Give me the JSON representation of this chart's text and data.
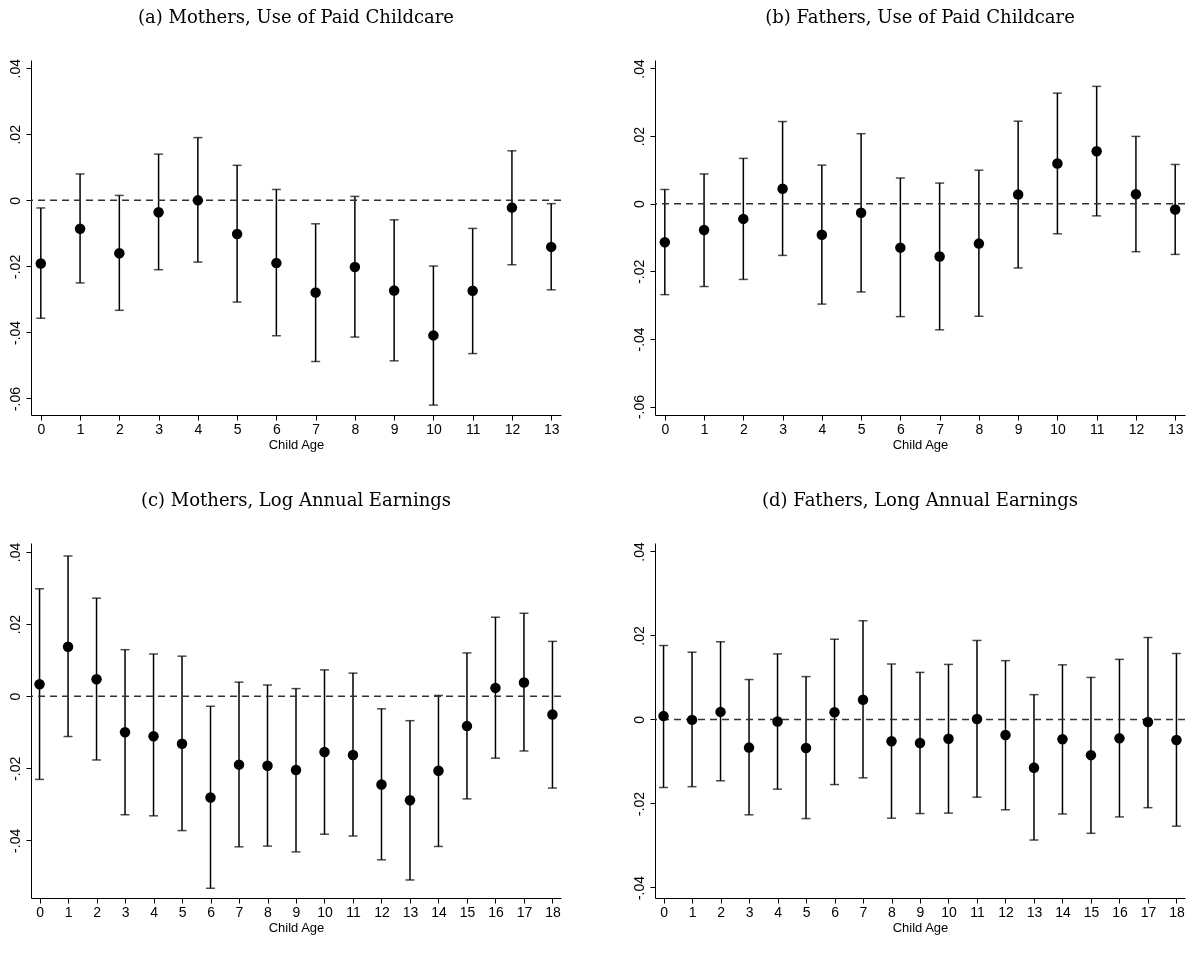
{
  "chart_data": [
    {
      "type": "scatter",
      "title": "(a) Mothers, Use of Paid Childcare",
      "xlabel": "Child Age",
      "marker": "circle",
      "grid": false,
      "color": "#000000",
      "x": [
        0,
        1,
        2,
        3,
        4,
        5,
        6,
        7,
        8,
        9,
        10,
        11,
        12,
        13
      ],
      "values": [
        -0.0191,
        -0.0086,
        -0.016,
        -0.0036,
        0.0,
        -0.0102,
        -0.019,
        -0.0279,
        -0.0202,
        -0.0273,
        -0.0409,
        -0.0274,
        -0.0022,
        -0.0141
      ],
      "errors": [
        [
          -0.0357,
          -0.0023
        ],
        [
          -0.025,
          0.008
        ],
        [
          -0.0333,
          0.0015
        ],
        [
          -0.021,
          0.014
        ],
        [
          -0.0187,
          0.019
        ],
        [
          -0.0308,
          0.0106
        ],
        [
          -0.041,
          0.0033
        ],
        [
          -0.0488,
          -0.0071
        ],
        [
          -0.0414,
          0.0012
        ],
        [
          -0.0486,
          -0.0059
        ],
        [
          -0.062,
          -0.0199
        ],
        [
          -0.0464,
          -0.0085
        ],
        [
          -0.0195,
          0.015
        ],
        [
          -0.0271,
          -0.001
        ]
      ],
      "xlim": [
        -0.25,
        13.25
      ],
      "xticks": [
        0,
        1,
        2,
        3,
        4,
        5,
        6,
        7,
        8,
        9,
        10,
        11,
        12,
        13
      ],
      "ylim": [
        -0.065,
        0.0425
      ],
      "yticks": [
        {
          "value": -0.06,
          "label": "-.06"
        },
        {
          "value": -0.04,
          "label": "-.04"
        },
        {
          "value": -0.02,
          "label": "-.02"
        },
        {
          "value": 0,
          "label": "0"
        },
        {
          "value": 0.02,
          "label": ".02"
        },
        {
          "value": 0.04,
          "label": ".04"
        }
      ],
      "ref_lines": [
        {
          "axis": "y",
          "value": 0,
          "line_style": "dashed"
        }
      ]
    },
    {
      "type": "scatter",
      "title": "(b) Fathers, Use of Paid Childcare",
      "xlabel": "Child Age",
      "marker": "circle",
      "grid": false,
      "color": "#000000",
      "x": [
        0,
        1,
        2,
        3,
        4,
        5,
        6,
        7,
        8,
        9,
        10,
        11,
        12,
        13
      ],
      "values": [
        -0.0114,
        -0.0078,
        -0.0045,
        0.0044,
        -0.0092,
        -0.0027,
        -0.013,
        -0.0156,
        -0.0118,
        0.0027,
        0.0119,
        0.0155,
        0.0028,
        -0.0017
      ],
      "errors": [
        [
          -0.0269,
          0.0042
        ],
        [
          -0.0245,
          0.0088
        ],
        [
          -0.0224,
          0.0134
        ],
        [
          -0.0153,
          0.0243
        ],
        [
          -0.0297,
          0.0114
        ],
        [
          -0.0261,
          0.0207
        ],
        [
          -0.0334,
          0.0076
        ],
        [
          -0.0373,
          0.0061
        ],
        [
          -0.0333,
          0.0099
        ],
        [
          -0.019,
          0.0244
        ],
        [
          -0.0089,
          0.0327
        ],
        [
          -0.0036,
          0.0347
        ],
        [
          -0.0142,
          0.0199
        ],
        [
          -0.015,
          0.0116
        ]
      ],
      "xlim": [
        -0.25,
        13.25
      ],
      "xticks": [
        0,
        1,
        2,
        3,
        4,
        5,
        6,
        7,
        8,
        9,
        10,
        11,
        12,
        13
      ],
      "ylim": [
        -0.0625,
        0.0425
      ],
      "yticks": [
        {
          "value": -0.06,
          "label": "-.06"
        },
        {
          "value": -0.04,
          "label": "-.04"
        },
        {
          "value": -0.02,
          "label": "-.02"
        },
        {
          "value": 0,
          "label": "0"
        },
        {
          "value": 0.02,
          "label": ".02"
        },
        {
          "value": 0.04,
          "label": ".04"
        }
      ],
      "ref_lines": [
        {
          "axis": "y",
          "value": 0,
          "line_style": "dashed"
        }
      ]
    },
    {
      "type": "scatter",
      "title": "(c) Mothers, Log Annual Earnings",
      "xlabel": "Child Age",
      "marker": "circle",
      "grid": false,
      "color": "#000000",
      "x": [
        0,
        1,
        2,
        3,
        4,
        5,
        6,
        7,
        8,
        9,
        10,
        11,
        12,
        13,
        14,
        15,
        16,
        17,
        18
      ],
      "values": [
        0.0033,
        0.0137,
        0.0047,
        -0.01,
        -0.0111,
        -0.0132,
        -0.0281,
        -0.019,
        -0.0193,
        -0.0205,
        -0.0155,
        -0.0163,
        -0.0245,
        -0.0289,
        -0.0207,
        -0.0083,
        0.0023,
        0.0038,
        -0.0051
      ],
      "errors": [
        [
          -0.0231,
          0.0298
        ],
        [
          -0.0112,
          0.0389
        ],
        [
          -0.0177,
          0.0272
        ],
        [
          -0.0329,
          0.0129
        ],
        [
          -0.0332,
          0.0117
        ],
        [
          -0.0373,
          0.0111
        ],
        [
          -0.0533,
          -0.0028
        ],
        [
          -0.0418,
          0.0039
        ],
        [
          -0.0416,
          0.0031
        ],
        [
          -0.0432,
          0.0021
        ],
        [
          -0.0383,
          0.0073
        ],
        [
          -0.0388,
          0.0064
        ],
        [
          -0.0454,
          -0.0035
        ],
        [
          -0.051,
          -0.0068
        ],
        [
          -0.0417,
          0.0002
        ],
        [
          -0.0285,
          0.012
        ],
        [
          -0.0172,
          0.0219
        ],
        [
          -0.0152,
          0.023
        ],
        [
          -0.0255,
          0.0152
        ]
      ],
      "xlim": [
        -0.3,
        18.3
      ],
      "xticks": [
        0,
        1,
        2,
        3,
        4,
        5,
        6,
        7,
        8,
        9,
        10,
        11,
        12,
        13,
        14,
        15,
        16,
        17,
        18
      ],
      "ylim": [
        -0.056,
        0.0425
      ],
      "yticks": [
        {
          "value": -0.04,
          "label": "-.04"
        },
        {
          "value": -0.02,
          "label": "-.02"
        },
        {
          "value": 0,
          "label": "0"
        },
        {
          "value": 0.02,
          "label": ".02"
        },
        {
          "value": 0.04,
          "label": ".04"
        }
      ],
      "ref_lines": [
        {
          "axis": "y",
          "value": 0,
          "line_style": "dashed"
        }
      ]
    },
    {
      "type": "scatter",
      "title": "(d) Fathers, Long Annual Earnings",
      "xlabel": "Child Age",
      "marker": "circle",
      "grid": false,
      "color": "#000000",
      "x": [
        0,
        1,
        2,
        3,
        4,
        5,
        6,
        7,
        8,
        9,
        10,
        11,
        12,
        13,
        14,
        15,
        16,
        17,
        18
      ],
      "values": [
        0.0008,
        -0.0001,
        0.0018,
        -0.0067,
        -0.0005,
        -0.0068,
        0.0017,
        0.0047,
        -0.0052,
        -0.0056,
        -0.0046,
        0.0001,
        -0.0037,
        -0.0115,
        -0.0047,
        -0.0085,
        -0.0045,
        -0.0006,
        -0.0049
      ],
      "errors": [
        [
          -0.0162,
          0.0176
        ],
        [
          -0.016,
          0.016
        ],
        [
          -0.0146,
          0.0185
        ],
        [
          -0.0227,
          0.0095
        ],
        [
          -0.0166,
          0.0156
        ],
        [
          -0.0236,
          0.0102
        ],
        [
          -0.0155,
          0.0191
        ],
        [
          -0.0139,
          0.0235
        ],
        [
          -0.0235,
          0.0132
        ],
        [
          -0.0224,
          0.0112
        ],
        [
          -0.0223,
          0.0131
        ],
        [
          -0.0185,
          0.0188
        ],
        [
          -0.0215,
          0.014
        ],
        [
          -0.0287,
          0.0059
        ],
        [
          -0.0225,
          0.013
        ],
        [
          -0.0271,
          0.01
        ],
        [
          -0.0232,
          0.0143
        ],
        [
          -0.021,
          0.0195
        ],
        [
          -0.0254,
          0.0157
        ]
      ],
      "xlim": [
        -0.3,
        18.3
      ],
      "xticks": [
        0,
        1,
        2,
        3,
        4,
        5,
        6,
        7,
        8,
        9,
        10,
        11,
        12,
        13,
        14,
        15,
        16,
        17,
        18
      ],
      "ylim": [
        -0.0425,
        0.042
      ],
      "yticks": [
        {
          "value": -0.04,
          "label": "-.04"
        },
        {
          "value": -0.02,
          "label": "-.02"
        },
        {
          "value": 0,
          "label": "0"
        },
        {
          "value": 0.02,
          "label": ".02"
        },
        {
          "value": 0.04,
          "label": ".04"
        }
      ],
      "ref_lines": [
        {
          "axis": "y",
          "value": 0,
          "line_style": "dashed"
        }
      ]
    }
  ]
}
